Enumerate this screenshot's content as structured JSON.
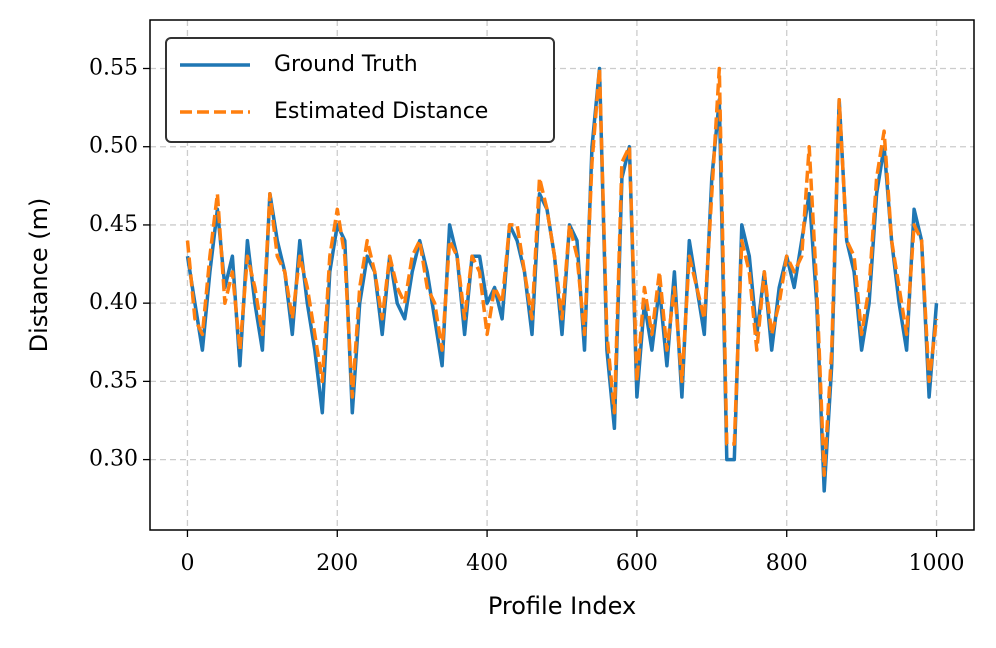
{
  "chart_data": {
    "type": "line",
    "xlabel": "Profile Index",
    "ylabel": "Distance (m)",
    "x": [
      0,
      10,
      20,
      30,
      40,
      50,
      60,
      70,
      80,
      90,
      100,
      110,
      120,
      130,
      140,
      150,
      160,
      170,
      180,
      190,
      200,
      210,
      220,
      230,
      240,
      250,
      260,
      270,
      280,
      290,
      300,
      310,
      320,
      330,
      340,
      350,
      360,
      370,
      380,
      390,
      400,
      410,
      420,
      430,
      440,
      450,
      460,
      470,
      480,
      490,
      500,
      510,
      520,
      530,
      540,
      550,
      560,
      570,
      580,
      590,
      600,
      610,
      620,
      630,
      640,
      650,
      660,
      670,
      680,
      690,
      700,
      710,
      720,
      730,
      740,
      750,
      760,
      770,
      780,
      790,
      800,
      810,
      820,
      830,
      840,
      850,
      860,
      870,
      880,
      890,
      900,
      910,
      920,
      930,
      940,
      950,
      960,
      970,
      980,
      990,
      1000
    ],
    "series": [
      {
        "name": "Ground Truth",
        "color": "#1f77b4",
        "dash": false,
        "values": [
          0.43,
          0.4,
          0.37,
          0.42,
          0.46,
          0.41,
          0.43,
          0.36,
          0.44,
          0.4,
          0.37,
          0.47,
          0.44,
          0.42,
          0.38,
          0.44,
          0.4,
          0.37,
          0.33,
          0.42,
          0.45,
          0.44,
          0.33,
          0.4,
          0.43,
          0.42,
          0.38,
          0.43,
          0.4,
          0.39,
          0.42,
          0.44,
          0.42,
          0.39,
          0.36,
          0.45,
          0.43,
          0.38,
          0.43,
          0.43,
          0.4,
          0.41,
          0.39,
          0.45,
          0.44,
          0.42,
          0.38,
          0.47,
          0.46,
          0.43,
          0.38,
          0.45,
          0.44,
          0.37,
          0.5,
          0.55,
          0.37,
          0.32,
          0.48,
          0.5,
          0.34,
          0.4,
          0.37,
          0.41,
          0.36,
          0.42,
          0.34,
          0.44,
          0.41,
          0.38,
          0.48,
          0.53,
          0.3,
          0.3,
          0.45,
          0.43,
          0.38,
          0.42,
          0.37,
          0.41,
          0.43,
          0.41,
          0.44,
          0.47,
          0.4,
          0.28,
          0.36,
          0.53,
          0.44,
          0.42,
          0.37,
          0.4,
          0.47,
          0.5,
          0.44,
          0.4,
          0.37,
          0.46,
          0.44,
          0.34,
          0.4
        ]
      },
      {
        "name": "Estimated Distance",
        "color": "#ff7f0e",
        "dash": true,
        "values": [
          0.44,
          0.39,
          0.38,
          0.43,
          0.47,
          0.4,
          0.42,
          0.37,
          0.43,
          0.41,
          0.38,
          0.47,
          0.43,
          0.42,
          0.39,
          0.43,
          0.41,
          0.38,
          0.35,
          0.43,
          0.46,
          0.43,
          0.34,
          0.41,
          0.44,
          0.42,
          0.39,
          0.43,
          0.41,
          0.4,
          0.43,
          0.44,
          0.41,
          0.4,
          0.37,
          0.44,
          0.43,
          0.39,
          0.43,
          0.42,
          0.38,
          0.41,
          0.4,
          0.45,
          0.45,
          0.42,
          0.39,
          0.48,
          0.46,
          0.43,
          0.39,
          0.45,
          0.43,
          0.38,
          0.49,
          0.55,
          0.38,
          0.33,
          0.49,
          0.5,
          0.35,
          0.41,
          0.38,
          0.42,
          0.37,
          0.41,
          0.35,
          0.43,
          0.41,
          0.39,
          0.47,
          0.55,
          0.31,
          0.31,
          0.44,
          0.42,
          0.37,
          0.42,
          0.38,
          0.4,
          0.43,
          0.42,
          0.43,
          0.5,
          0.41,
          0.29,
          0.37,
          0.53,
          0.44,
          0.43,
          0.38,
          0.41,
          0.48,
          0.51,
          0.44,
          0.41,
          0.38,
          0.45,
          0.44,
          0.35,
          0.39
        ]
      }
    ],
    "xlim": [
      -50,
      1050
    ],
    "xticks": [
      0,
      200,
      400,
      600,
      800,
      1000
    ],
    "ylim": [
      0.255,
      0.581
    ],
    "yticks": [
      {
        "value": 0.3,
        "label": "0.30"
      },
      0.35,
      {
        "value": 0.4,
        "label": "0.40"
      },
      0.45,
      {
        "value": 0.5,
        "label": "0.50"
      },
      0.55
    ],
    "grid": true,
    "legend": "upper left"
  }
}
